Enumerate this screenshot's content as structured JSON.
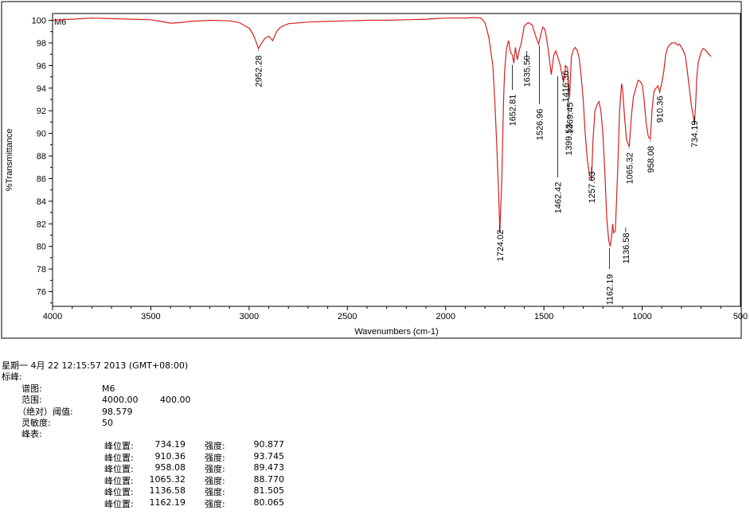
{
  "chart_data": {
    "type": "line",
    "sample_label": "M6",
    "xlabel": "Wavenumbers (cm-1)",
    "ylabel": "%Transmittance",
    "xlim": [
      4000,
      500
    ],
    "ylim": [
      74.7,
      100.6
    ],
    "x_reversed": true,
    "grid": false,
    "x_ticks": [
      "4000",
      "3500",
      "3000",
      "2500",
      "2000",
      "1500",
      "1000",
      "500"
    ],
    "y_ticks": [
      "76",
      "78",
      "80",
      "82",
      "84",
      "86",
      "88",
      "90",
      "92",
      "94",
      "96",
      "98",
      "100"
    ],
    "line_color": "#d42020",
    "series": [
      {
        "x": [
          4000,
          3900,
          3800,
          3700,
          3600,
          3500,
          3450,
          3400,
          3350,
          3300,
          3200,
          3100,
          3050,
          3000,
          2980,
          2960,
          2952.28,
          2940,
          2920,
          2900,
          2880,
          2870,
          2860,
          2840,
          2800,
          2700,
          2600,
          2500,
          2400,
          2300,
          2200,
          2100,
          2000,
          1950,
          1900,
          1850,
          1820,
          1800,
          1780,
          1760,
          1750,
          1740,
          1730,
          1724.02,
          1715,
          1705,
          1700,
          1690,
          1680,
          1670,
          1660,
          1652.81,
          1645,
          1635.5,
          1625,
          1615,
          1600,
          1580,
          1560,
          1540,
          1526.96,
          1515,
          1505,
          1495,
          1485,
          1475,
          1462.42,
          1450,
          1440,
          1430,
          1420,
          1416.36,
          1408,
          1399.53,
          1390,
          1380,
          1369.45,
          1360,
          1350,
          1340,
          1330,
          1320,
          1310,
          1300,
          1290,
          1280,
          1270,
          1265,
          1257.63,
          1250,
          1240,
          1230,
          1220,
          1210,
          1200,
          1190,
          1180,
          1170,
          1162.19,
          1155,
          1150,
          1145,
          1136.58,
          1125,
          1115,
          1105,
          1100,
          1090,
          1080,
          1070,
          1065.32,
          1055,
          1045,
          1035,
          1020,
          1010,
          1000,
          990,
          980,
          970,
          965,
          958.08,
          950,
          940,
          930,
          920,
          910.36,
          900,
          890,
          880,
          870,
          860,
          850,
          840,
          830,
          820,
          810,
          800,
          790,
          780,
          770,
          760,
          750,
          740,
          734.19,
          728,
          722,
          715,
          710,
          700,
          690,
          680,
          670,
          660,
          650
        ],
        "y": [
          100.0,
          100.1,
          100.2,
          100.15,
          100.1,
          100.05,
          99.9,
          99.75,
          99.8,
          99.9,
          100.0,
          99.95,
          99.8,
          99.3,
          98.8,
          97.9,
          97.5,
          97.9,
          98.4,
          98.6,
          98.2,
          98.6,
          99.0,
          99.4,
          99.7,
          99.85,
          99.9,
          99.95,
          100.0,
          100.0,
          100.05,
          100.1,
          100.2,
          100.2,
          100.2,
          100.25,
          100.2,
          99.8,
          98.5,
          96.0,
          93.0,
          89.0,
          84.5,
          81.3,
          85.5,
          93.0,
          95.5,
          97.5,
          98.2,
          97.2,
          96.9,
          96.2,
          97.6,
          96.5,
          97.4,
          98.0,
          99.5,
          99.8,
          99.6,
          98.5,
          97.9,
          98.8,
          99.4,
          99.2,
          98.3,
          97.0,
          95.2,
          96.9,
          97.3,
          96.8,
          96.2,
          96.0,
          95.1,
          94.5,
          96.0,
          95.8,
          93.2,
          96.8,
          97.4,
          97.6,
          97.3,
          96.6,
          95.0,
          93.0,
          90.0,
          87.8,
          86.5,
          86.2,
          86.0,
          89.5,
          92.0,
          92.5,
          92.8,
          92.0,
          90.0,
          86.5,
          82.5,
          80.5,
          80.0,
          81.0,
          82.0,
          81.2,
          81.4,
          86.5,
          92.0,
          94.4,
          94.0,
          91.5,
          89.5,
          89.0,
          88.8,
          91.5,
          93.2,
          93.8,
          94.7,
          94.6,
          94.3,
          93.0,
          91.0,
          89.8,
          89.6,
          89.5,
          92.0,
          93.7,
          94.0,
          94.2,
          93.7,
          94.5,
          95.5,
          97.0,
          97.6,
          97.8,
          98.0,
          98.0,
          98.0,
          97.8,
          97.9,
          97.6,
          97.3,
          96.8,
          95.5,
          94.0,
          92.5,
          91.5,
          90.9,
          92.5,
          95.0,
          96.2,
          96.6,
          97.2,
          97.5,
          97.4,
          97.2,
          97.0,
          96.8
        ]
      }
    ],
    "peak_labels": [
      "2952.28",
      "1724.02",
      "1652.81",
      "1635.50",
      "1526.96",
      "1462.42",
      "1416.36",
      "1399.53",
      "1369.45",
      "1257.63",
      "1162.19",
      "1136.58",
      "1065.32",
      "958.08",
      "910.36",
      "734.19"
    ]
  },
  "report": {
    "timestamp": "星期一 4月 22 12:15:57 2013 (GMT+08:00)",
    "header": "标峰:",
    "spectrum_label": "谱图:",
    "spectrum_value": "M6",
    "range_label": "范围:",
    "range_start": "4000.00",
    "range_end": "400.00",
    "threshold_label": "（绝对）阈值:",
    "threshold_value": "98.579",
    "sensitivity_label": "灵敏度:",
    "sensitivity_value": "50",
    "peak_table_label": "峰表:",
    "peak_position_label": "峰位置:",
    "intensity_label": "强度:",
    "peaks": [
      {
        "position": "734.19",
        "intensity": "90.877"
      },
      {
        "position": "910.36",
        "intensity": "93.745"
      },
      {
        "position": "958.08",
        "intensity": "89.473"
      },
      {
        "position": "1065.32",
        "intensity": "88.770"
      },
      {
        "position": "1136.58",
        "intensity": "81.505"
      },
      {
        "position": "1162.19",
        "intensity": "80.065"
      }
    ]
  }
}
